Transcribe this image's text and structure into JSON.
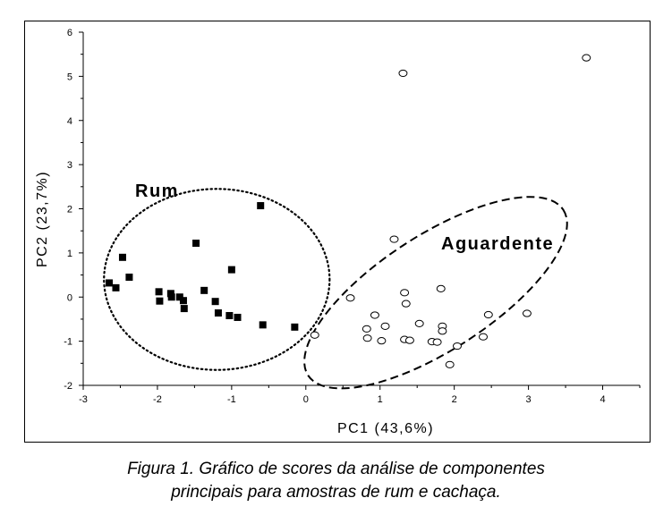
{
  "chart_data": {
    "type": "scatter",
    "xlabel": "PC1 (43,6%)",
    "ylabel": "PC2 (23,7%)",
    "xlim": [
      -3,
      4.5
    ],
    "ylim": [
      -2,
      6
    ],
    "x_ticks": [
      -3,
      -2,
      -1,
      0,
      1,
      2,
      3,
      4
    ],
    "y_ticks": [
      -2,
      -1,
      0,
      1,
      2,
      3,
      4,
      5,
      6
    ],
    "grid": false,
    "group_labels": [
      "Rum",
      "Aguardente"
    ],
    "series": [
      {
        "name": "Rum",
        "marker": "filled-square",
        "color": "#000000",
        "points": [
          {
            "x": -2.65,
            "y": 0.32
          },
          {
            "x": -2.56,
            "y": 0.21
          },
          {
            "x": -2.47,
            "y": 0.9
          },
          {
            "x": -2.38,
            "y": 0.45
          },
          {
            "x": -1.98,
            "y": 0.12
          },
          {
            "x": -1.97,
            "y": -0.09
          },
          {
            "x": -1.82,
            "y": 0.08
          },
          {
            "x": -1.81,
            "y": 0.0
          },
          {
            "x": -1.7,
            "y": 0.0
          },
          {
            "x": -1.65,
            "y": -0.08
          },
          {
            "x": -1.64,
            "y": -0.26
          },
          {
            "x": -1.48,
            "y": 1.22
          },
          {
            "x": -1.37,
            "y": 0.15
          },
          {
            "x": -1.22,
            "y": -0.1
          },
          {
            "x": -1.18,
            "y": -0.36
          },
          {
            "x": -1.03,
            "y": -0.42
          },
          {
            "x": -1.0,
            "y": 0.62
          },
          {
            "x": -0.92,
            "y": -0.46
          },
          {
            "x": -0.61,
            "y": 2.07
          },
          {
            "x": -0.58,
            "y": -0.63
          },
          {
            "x": -0.15,
            "y": -0.68
          }
        ]
      },
      {
        "name": "Aguardente",
        "marker": "open-circle",
        "color": "#000000",
        "points": [
          {
            "x": 1.31,
            "y": 5.07
          },
          {
            "x": 3.78,
            "y": 5.42
          },
          {
            "x": 1.19,
            "y": 1.31
          },
          {
            "x": 0.12,
            "y": -0.86
          },
          {
            "x": 0.6,
            "y": -0.02
          },
          {
            "x": 0.82,
            "y": -0.72
          },
          {
            "x": 0.83,
            "y": -0.93
          },
          {
            "x": 0.93,
            "y": -0.41
          },
          {
            "x": 1.02,
            "y": -0.99
          },
          {
            "x": 1.07,
            "y": -0.66
          },
          {
            "x": 1.33,
            "y": 0.1
          },
          {
            "x": 1.35,
            "y": -0.15
          },
          {
            "x": 1.33,
            "y": -0.96
          },
          {
            "x": 1.4,
            "y": -0.98
          },
          {
            "x": 1.53,
            "y": -0.6
          },
          {
            "x": 1.7,
            "y": -1.01
          },
          {
            "x": 1.77,
            "y": -1.02
          },
          {
            "x": 1.82,
            "y": 0.19
          },
          {
            "x": 1.84,
            "y": -0.66
          },
          {
            "x": 1.84,
            "y": -0.77
          },
          {
            "x": 1.94,
            "y": -1.53
          },
          {
            "x": 2.04,
            "y": -1.11
          },
          {
            "x": 2.39,
            "y": -0.9
          },
          {
            "x": 2.46,
            "y": -0.4
          },
          {
            "x": 2.98,
            "y": -0.37
          }
        ]
      }
    ],
    "ellipses": [
      {
        "group": "Rum",
        "style": "dotted",
        "cx": -1.2,
        "cy": 0.4,
        "rx": 1.52,
        "ry": 2.05,
        "angle": 0
      },
      {
        "group": "Aguardente",
        "style": "dashed",
        "cx": 1.75,
        "cy": 0.1,
        "rx": 2.05,
        "ry": 1.3,
        "angle": -33
      }
    ]
  },
  "caption": {
    "line1": "Figura 1. Gráfico de scores da análise de componentes",
    "line2": "principais para amostras de rum e cachaça."
  }
}
